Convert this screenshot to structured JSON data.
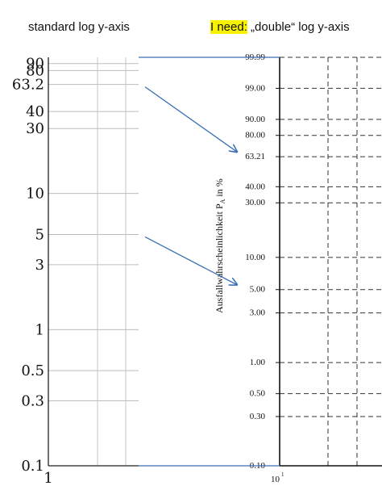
{
  "captions": {
    "left": "standard log y-axis",
    "right_highlight": "I need:",
    "right_rest": " „double“ log y-axis"
  },
  "chart_data": [
    {
      "type": "line",
      "title": "standard log y-axis",
      "scale_y": "log",
      "ylim": [
        0.1,
        100
      ],
      "yticks": [
        {
          "label": "90",
          "value": 90
        },
        {
          "label": "80",
          "value": 80
        },
        {
          "label": "63.2",
          "value": 63.2
        },
        {
          "label": "40",
          "value": 40
        },
        {
          "label": "30",
          "value": 30
        },
        {
          "label": "10",
          "value": 10
        },
        {
          "label": "5",
          "value": 5
        },
        {
          "label": "3",
          "value": 3
        },
        {
          "label": "1",
          "value": 1
        },
        {
          "label": "0.5",
          "value": 0.5
        },
        {
          "label": "0.3",
          "value": 0.3
        },
        {
          "label": "0.1",
          "value": 0.1
        }
      ],
      "xticks": [
        {
          "label": "1",
          "value": 1
        }
      ],
      "grid": true
    },
    {
      "type": "line",
      "title": "double log y-axis",
      "scale_y": "weibull (double log)",
      "ylabel": "Ausfallwahrscheinlichkeit P_A in %",
      "ylabel_main": "Ausfallwahrscheinlichkeit P",
      "ylabel_sub": "A",
      "ylabel_tail": " in %",
      "ylim": [
        0.1,
        99.99
      ],
      "yticks": [
        {
          "label": "99.99",
          "value": 99.99
        },
        {
          "label": "99.00",
          "value": 99.0
        },
        {
          "label": "90.00",
          "value": 90.0
        },
        {
          "label": "80.00",
          "value": 80.0
        },
        {
          "label": "63.21",
          "value": 63.21
        },
        {
          "label": "40.00",
          "value": 40.0
        },
        {
          "label": "30.00",
          "value": 30.0
        },
        {
          "label": "10.00",
          "value": 10.0
        },
        {
          "label": "5.00",
          "value": 5.0
        },
        {
          "label": "3.00",
          "value": 3.0
        },
        {
          "label": "1.00",
          "value": 1.0
        },
        {
          "label": "0.50",
          "value": 0.5
        },
        {
          "label": "0.30",
          "value": 0.3
        },
        {
          "label": "0.10",
          "value": 0.1
        }
      ],
      "xtick_base": "10",
      "xtick_exp": "1",
      "grid": "dashed"
    }
  ],
  "annotations": [
    {
      "from_value": 63.2,
      "to_value": 63.21,
      "color": "#3a6fb5"
    },
    {
      "from_value": 5,
      "to_value": 5.0,
      "color": "#3a6fb5"
    }
  ],
  "colors": {
    "arrow": "#3a6fb5",
    "highlight": "#f7f200",
    "grid_left": "#bbbbbb"
  }
}
